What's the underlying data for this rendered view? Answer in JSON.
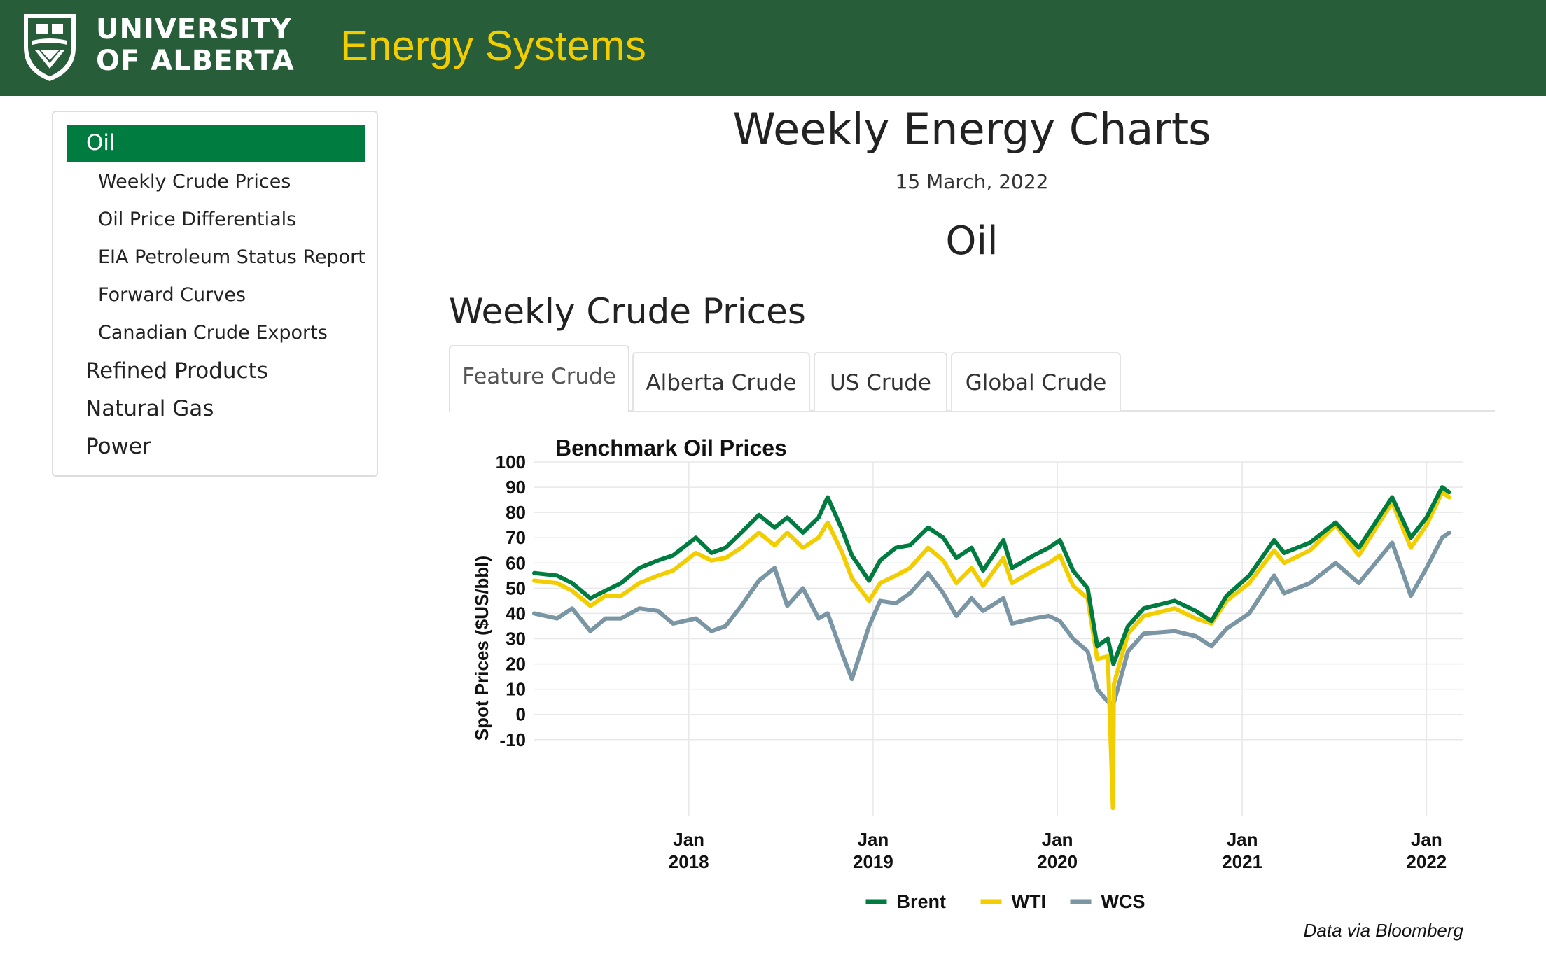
{
  "header": {
    "logo_line1": "UNIVERSITY",
    "logo_line2": "OF ALBERTA",
    "site_title": "Energy Systems",
    "colors": {
      "background": "#275d38",
      "title": "#f2cd00"
    }
  },
  "sidebar": {
    "active": "Oil",
    "sub_items": [
      "Weekly Crude Prices",
      "Oil Price Differentials",
      "EIA Petroleum Status Report",
      "Forward Curves",
      "Canadian Crude Exports"
    ],
    "top_items": [
      "Refined Products",
      "Natural Gas",
      "Power"
    ],
    "active_color": "#007c41"
  },
  "main": {
    "title": "Weekly Energy Charts",
    "date": "15 March, 2022",
    "section": "Oil",
    "subsection": "Weekly Crude Prices",
    "tabs": [
      "Feature Crude",
      "Alberta Crude",
      "US Crude",
      "Global Crude"
    ],
    "active_tab": "Feature Crude"
  },
  "chart_data": {
    "type": "line",
    "title": "Benchmark Oil Prices",
    "ylabel": "Spot Prices ($US/bbl)",
    "xlabel": "",
    "caption": "Data via Bloomberg",
    "ylim": [
      -40,
      100
    ],
    "yticks": [
      100,
      90,
      80,
      70,
      60,
      50,
      40,
      30,
      20,
      10,
      0,
      -10
    ],
    "ytick_labels": [
      "100",
      "90",
      "80",
      "70",
      "60",
      "50",
      "40",
      "30",
      "20",
      "10",
      "0",
      "-10"
    ],
    "xlim": [
      "2017-03-01",
      "2022-03-15"
    ],
    "xticks": [
      {
        "date": "2018-01-01",
        "month": "Jan",
        "year": "2018"
      },
      {
        "date": "2019-01-01",
        "month": "Jan",
        "year": "2019"
      },
      {
        "date": "2020-01-01",
        "month": "Jan",
        "year": "2020"
      },
      {
        "date": "2021-01-01",
        "month": "Jan",
        "year": "2021"
      },
      {
        "date": "2022-01-01",
        "month": "Jan",
        "year": "2022"
      }
    ],
    "grid": true,
    "legend_position": "bottom",
    "series": [
      {
        "name": "Brent",
        "color": "#007c41",
        "points": [
          [
            "2017-03-01",
            56
          ],
          [
            "2017-04-15",
            55
          ],
          [
            "2017-05-15",
            52
          ],
          [
            "2017-06-20",
            46
          ],
          [
            "2017-07-20",
            49
          ],
          [
            "2017-08-20",
            52
          ],
          [
            "2017-09-25",
            58
          ],
          [
            "2017-11-01",
            61
          ],
          [
            "2017-12-01",
            63
          ],
          [
            "2018-01-15",
            70
          ],
          [
            "2018-02-15",
            64
          ],
          [
            "2018-03-15",
            66
          ],
          [
            "2018-04-15",
            72
          ],
          [
            "2018-05-20",
            79
          ],
          [
            "2018-06-20",
            74
          ],
          [
            "2018-07-15",
            78
          ],
          [
            "2018-08-15",
            72
          ],
          [
            "2018-09-15",
            78
          ],
          [
            "2018-10-03",
            86
          ],
          [
            "2018-11-01",
            73
          ],
          [
            "2018-11-20",
            63
          ],
          [
            "2018-12-24",
            53
          ],
          [
            "2019-01-15",
            61
          ],
          [
            "2019-02-15",
            66
          ],
          [
            "2019-03-15",
            67
          ],
          [
            "2019-04-20",
            74
          ],
          [
            "2019-05-20",
            70
          ],
          [
            "2019-06-15",
            62
          ],
          [
            "2019-07-15",
            66
          ],
          [
            "2019-08-07",
            57
          ],
          [
            "2019-09-16",
            69
          ],
          [
            "2019-10-03",
            58
          ],
          [
            "2019-11-15",
            63
          ],
          [
            "2019-12-15",
            66
          ],
          [
            "2020-01-06",
            69
          ],
          [
            "2020-02-01",
            57
          ],
          [
            "2020-03-01",
            50
          ],
          [
            "2020-03-20",
            27
          ],
          [
            "2020-04-10",
            30
          ],
          [
            "2020-04-21",
            20
          ],
          [
            "2020-05-20",
            35
          ],
          [
            "2020-06-20",
            42
          ],
          [
            "2020-08-20",
            45
          ],
          [
            "2020-10-01",
            41
          ],
          [
            "2020-11-01",
            37
          ],
          [
            "2020-12-01",
            47
          ],
          [
            "2021-01-15",
            55
          ],
          [
            "2021-03-05",
            69
          ],
          [
            "2021-03-25",
            64
          ],
          [
            "2021-05-15",
            68
          ],
          [
            "2021-07-05",
            76
          ],
          [
            "2021-08-20",
            66
          ],
          [
            "2021-10-25",
            86
          ],
          [
            "2021-12-01",
            70
          ],
          [
            "2022-01-01",
            78
          ],
          [
            "2022-02-01",
            90
          ],
          [
            "2022-02-15",
            88
          ]
        ]
      },
      {
        "name": "WTI",
        "color": "#f2cd00",
        "points": [
          [
            "2017-03-01",
            53
          ],
          [
            "2017-04-15",
            52
          ],
          [
            "2017-05-15",
            49
          ],
          [
            "2017-06-20",
            43
          ],
          [
            "2017-07-20",
            47
          ],
          [
            "2017-08-20",
            47
          ],
          [
            "2017-09-25",
            52
          ],
          [
            "2017-11-01",
            55
          ],
          [
            "2017-12-01",
            57
          ],
          [
            "2018-01-15",
            64
          ],
          [
            "2018-02-15",
            61
          ],
          [
            "2018-03-15",
            62
          ],
          [
            "2018-04-15",
            66
          ],
          [
            "2018-05-20",
            72
          ],
          [
            "2018-06-20",
            67
          ],
          [
            "2018-07-15",
            72
          ],
          [
            "2018-08-15",
            66
          ],
          [
            "2018-09-15",
            70
          ],
          [
            "2018-10-03",
            76
          ],
          [
            "2018-11-01",
            64
          ],
          [
            "2018-11-20",
            54
          ],
          [
            "2018-12-24",
            45
          ],
          [
            "2019-01-15",
            52
          ],
          [
            "2019-02-15",
            55
          ],
          [
            "2019-03-15",
            58
          ],
          [
            "2019-04-20",
            66
          ],
          [
            "2019-05-20",
            61
          ],
          [
            "2019-06-15",
            52
          ],
          [
            "2019-07-15",
            58
          ],
          [
            "2019-08-07",
            51
          ],
          [
            "2019-09-16",
            62
          ],
          [
            "2019-10-03",
            52
          ],
          [
            "2019-11-15",
            57
          ],
          [
            "2019-12-15",
            60
          ],
          [
            "2020-01-06",
            63
          ],
          [
            "2020-02-01",
            51
          ],
          [
            "2020-03-01",
            46
          ],
          [
            "2020-03-20",
            22
          ],
          [
            "2020-04-10",
            23
          ],
          [
            "2020-04-20",
            -37
          ],
          [
            "2020-04-22",
            12
          ],
          [
            "2020-05-20",
            32
          ],
          [
            "2020-06-20",
            39
          ],
          [
            "2020-08-20",
            42
          ],
          [
            "2020-10-01",
            38
          ],
          [
            "2020-11-01",
            36
          ],
          [
            "2020-12-01",
            45
          ],
          [
            "2021-01-15",
            52
          ],
          [
            "2021-03-05",
            65
          ],
          [
            "2021-03-25",
            60
          ],
          [
            "2021-05-15",
            65
          ],
          [
            "2021-07-05",
            75
          ],
          [
            "2021-08-20",
            63
          ],
          [
            "2021-10-25",
            84
          ],
          [
            "2021-12-01",
            66
          ],
          [
            "2022-01-01",
            75
          ],
          [
            "2022-02-01",
            88
          ],
          [
            "2022-02-15",
            86
          ]
        ]
      },
      {
        "name": "WCS",
        "color": "#7a95a3",
        "points": [
          [
            "2017-03-01",
            40
          ],
          [
            "2017-04-15",
            38
          ],
          [
            "2017-05-15",
            42
          ],
          [
            "2017-06-20",
            33
          ],
          [
            "2017-07-20",
            38
          ],
          [
            "2017-08-20",
            38
          ],
          [
            "2017-09-25",
            42
          ],
          [
            "2017-11-01",
            41
          ],
          [
            "2017-12-01",
            36
          ],
          [
            "2018-01-15",
            38
          ],
          [
            "2018-02-15",
            33
          ],
          [
            "2018-03-15",
            35
          ],
          [
            "2018-04-15",
            43
          ],
          [
            "2018-05-20",
            53
          ],
          [
            "2018-06-20",
            58
          ],
          [
            "2018-07-15",
            43
          ],
          [
            "2018-08-15",
            50
          ],
          [
            "2018-09-15",
            38
          ],
          [
            "2018-10-03",
            40
          ],
          [
            "2018-11-01",
            24
          ],
          [
            "2018-11-20",
            14
          ],
          [
            "2018-12-24",
            35
          ],
          [
            "2019-01-15",
            45
          ],
          [
            "2019-02-15",
            44
          ],
          [
            "2019-03-15",
            48
          ],
          [
            "2019-04-20",
            56
          ],
          [
            "2019-05-20",
            48
          ],
          [
            "2019-06-15",
            39
          ],
          [
            "2019-07-15",
            46
          ],
          [
            "2019-08-07",
            41
          ],
          [
            "2019-09-16",
            46
          ],
          [
            "2019-10-03",
            36
          ],
          [
            "2019-11-15",
            38
          ],
          [
            "2019-12-15",
            39
          ],
          [
            "2020-01-06",
            37
          ],
          [
            "2020-02-01",
            30
          ],
          [
            "2020-03-01",
            25
          ],
          [
            "2020-03-20",
            10
          ],
          [
            "2020-04-10",
            5
          ],
          [
            "2020-04-21",
            4
          ],
          [
            "2020-05-20",
            25
          ],
          [
            "2020-06-20",
            32
          ],
          [
            "2020-08-20",
            33
          ],
          [
            "2020-10-01",
            31
          ],
          [
            "2020-11-01",
            27
          ],
          [
            "2020-12-01",
            34
          ],
          [
            "2021-01-15",
            40
          ],
          [
            "2021-03-05",
            55
          ],
          [
            "2021-03-25",
            48
          ],
          [
            "2021-05-15",
            52
          ],
          [
            "2021-07-05",
            60
          ],
          [
            "2021-08-20",
            52
          ],
          [
            "2021-10-25",
            68
          ],
          [
            "2021-12-01",
            47
          ],
          [
            "2022-01-01",
            58
          ],
          [
            "2022-02-01",
            70
          ],
          [
            "2022-02-15",
            72
          ]
        ]
      }
    ]
  }
}
